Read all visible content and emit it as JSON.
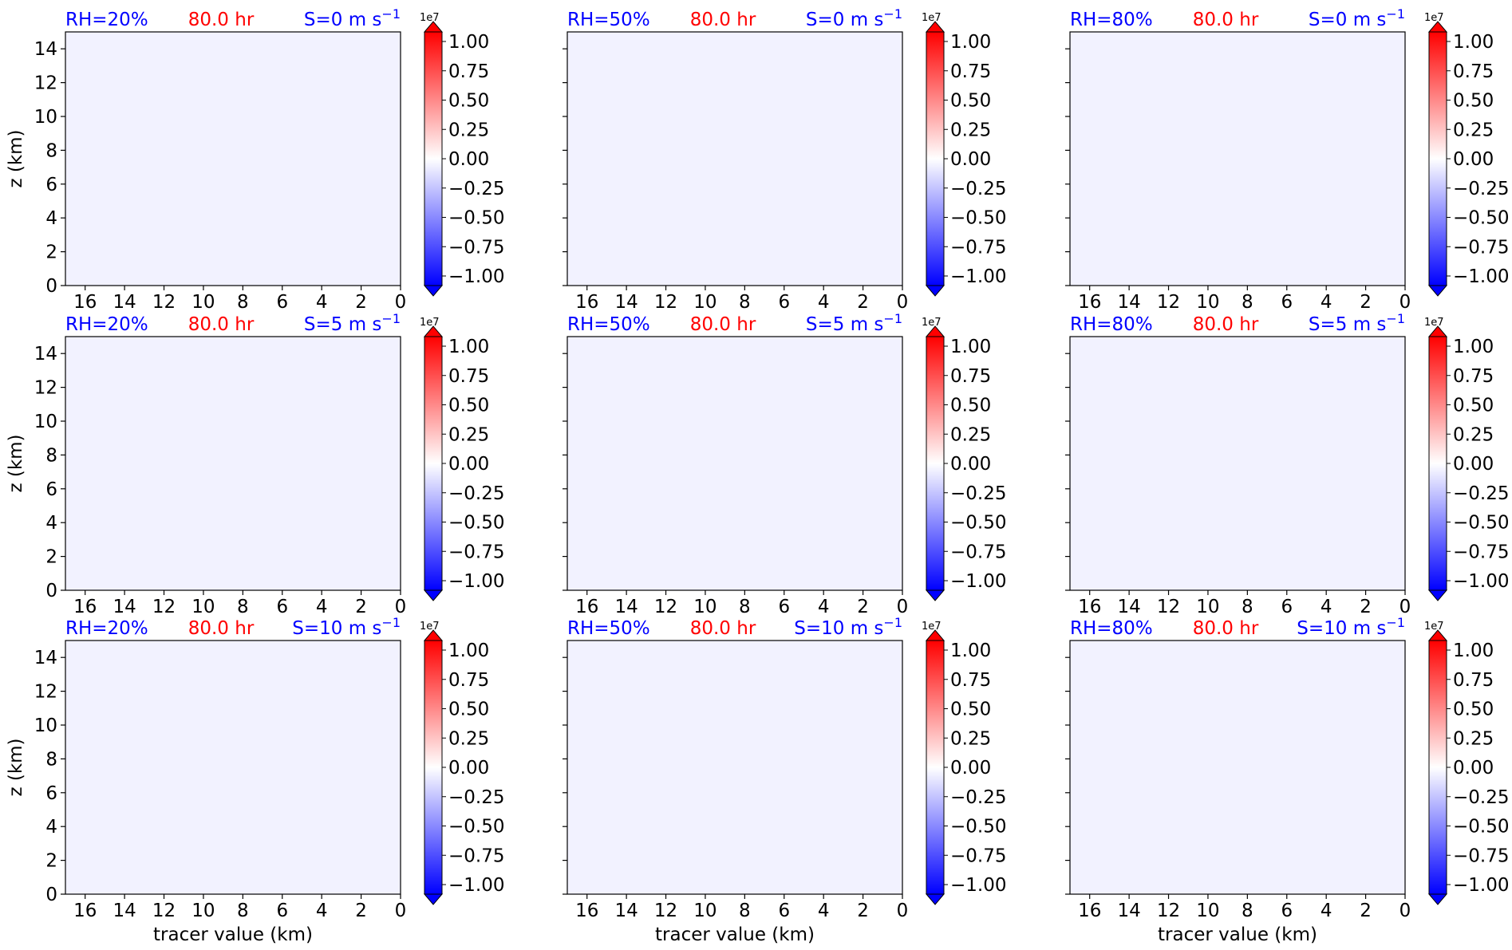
{
  "figure": {
    "xlabel": "tracer value (km)",
    "ylabel": "z (km)",
    "time_label": "80.0 hr",
    "colorbar": {
      "exponent_label": "1e7",
      "ticks": [
        "1.00",
        "0.75",
        "0.50",
        "0.25",
        "0.00",
        "−0.25",
        "−0.50",
        "−0.75",
        "−1.00"
      ],
      "min": -1.0,
      "max": 1.0,
      "colormap": "bwr"
    },
    "colors": {
      "rh_title": "#0000ff",
      "time_title": "#ff0000",
      "shear_title": "#0000ff",
      "background": "#f2f2ff",
      "contour": "#000000"
    }
  },
  "chart_data": [
    {
      "type": "heatmap",
      "rh": "RH=20%",
      "shear_value": "0",
      "x_reversed": true,
      "xlim": [
        17,
        0
      ],
      "ylim": [
        0,
        15
      ],
      "xticks": [
        16,
        14,
        12,
        10,
        8,
        6,
        4,
        2,
        0
      ],
      "yticks": [
        0,
        2,
        4,
        6,
        8,
        10,
        12,
        14
      ],
      "y_tick_labels": true,
      "x_tick_labels": true,
      "show_xlabel": false
    },
    {
      "type": "heatmap",
      "rh": "RH=50%",
      "shear_value": "0",
      "x_reversed": true,
      "xlim": [
        17,
        0
      ],
      "ylim": [
        0,
        15
      ],
      "xticks": [
        16,
        14,
        12,
        10,
        8,
        6,
        4,
        2,
        0
      ],
      "yticks": [
        0,
        2,
        4,
        6,
        8,
        10,
        12,
        14
      ],
      "y_tick_labels": false,
      "x_tick_labels": true,
      "show_xlabel": false
    },
    {
      "type": "heatmap",
      "rh": "RH=80%",
      "shear_value": "0",
      "x_reversed": true,
      "xlim": [
        17,
        0
      ],
      "ylim": [
        0,
        15
      ],
      "xticks": [
        16,
        14,
        12,
        10,
        8,
        6,
        4,
        2,
        0
      ],
      "yticks": [
        0,
        2,
        4,
        6,
        8,
        10,
        12,
        14
      ],
      "y_tick_labels": false,
      "x_tick_labels": true,
      "show_xlabel": false
    },
    {
      "type": "heatmap",
      "rh": "RH=20%",
      "shear_value": "5",
      "x_reversed": true,
      "xlim": [
        17,
        0
      ],
      "ylim": [
        0,
        15
      ],
      "xticks": [
        16,
        14,
        12,
        10,
        8,
        6,
        4,
        2,
        0
      ],
      "yticks": [
        0,
        2,
        4,
        6,
        8,
        10,
        12,
        14
      ],
      "y_tick_labels": true,
      "x_tick_labels": true,
      "show_xlabel": false
    },
    {
      "type": "heatmap",
      "rh": "RH=50%",
      "shear_value": "5",
      "x_reversed": true,
      "xlim": [
        17,
        0
      ],
      "ylim": [
        0,
        15
      ],
      "xticks": [
        16,
        14,
        12,
        10,
        8,
        6,
        4,
        2,
        0
      ],
      "yticks": [
        0,
        2,
        4,
        6,
        8,
        10,
        12,
        14
      ],
      "y_tick_labels": false,
      "x_tick_labels": true,
      "show_xlabel": false
    },
    {
      "type": "heatmap",
      "rh": "RH=80%",
      "shear_value": "5",
      "x_reversed": true,
      "xlim": [
        17,
        0
      ],
      "ylim": [
        0,
        15
      ],
      "xticks": [
        16,
        14,
        12,
        10,
        8,
        6,
        4,
        2,
        0
      ],
      "yticks": [
        0,
        2,
        4,
        6,
        8,
        10,
        12,
        14
      ],
      "y_tick_labels": false,
      "x_tick_labels": true,
      "show_xlabel": false
    },
    {
      "type": "heatmap",
      "rh": "RH=20%",
      "shear_value": "10",
      "x_reversed": true,
      "xlim": [
        17,
        0
      ],
      "ylim": [
        0,
        15
      ],
      "xticks": [
        16,
        14,
        12,
        10,
        8,
        6,
        4,
        2,
        0
      ],
      "yticks": [
        0,
        2,
        4,
        6,
        8,
        10,
        12,
        14
      ],
      "y_tick_labels": true,
      "x_tick_labels": true,
      "show_xlabel": true
    },
    {
      "type": "heatmap",
      "rh": "RH=50%",
      "shear_value": "10",
      "x_reversed": true,
      "xlim": [
        17,
        0
      ],
      "ylim": [
        0,
        15
      ],
      "xticks": [
        16,
        14,
        12,
        10,
        8,
        6,
        4,
        2,
        0
      ],
      "yticks": [
        0,
        2,
        4,
        6,
        8,
        10,
        12,
        14
      ],
      "y_tick_labels": false,
      "x_tick_labels": true,
      "show_xlabel": true
    },
    {
      "type": "heatmap",
      "rh": "RH=80%",
      "shear_value": "10",
      "x_reversed": true,
      "xlim": [
        17,
        0
      ],
      "ylim": [
        0,
        15
      ],
      "xticks": [
        16,
        14,
        12,
        10,
        8,
        6,
        4,
        2,
        0
      ],
      "yticks": [
        0,
        2,
        4,
        6,
        8,
        10,
        12,
        14
      ],
      "y_tick_labels": false,
      "x_tick_labels": true,
      "show_xlabel": true
    }
  ]
}
